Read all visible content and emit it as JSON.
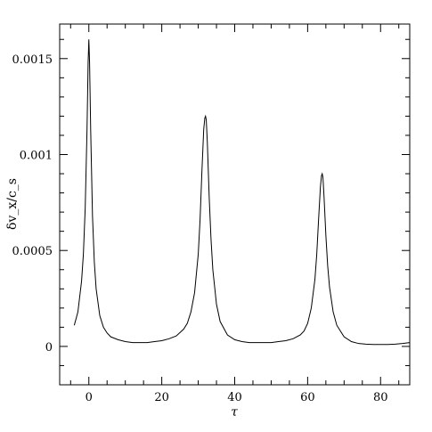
{
  "chart_data": {
    "type": "line",
    "title": "",
    "xlabel": "τ",
    "ylabel": "δv_x/c_s",
    "xlim": [
      -8,
      88
    ],
    "ylim": [
      -0.0002,
      0.00168
    ],
    "xticks": [
      0,
      20,
      40,
      60,
      80
    ],
    "xtick_labels": [
      "0",
      "20",
      "40",
      "60",
      "80"
    ],
    "yticks": [
      0,
      0.0005,
      0.001,
      0.0015
    ],
    "ytick_labels": [
      "0",
      "0.0005",
      "0.001",
      "0.0015"
    ],
    "grid": false,
    "line_color": "#000000",
    "series": [
      {
        "values_note": "",
        "x": [
          -4,
          -3,
          -2,
          -1.5,
          -1,
          -0.5,
          -0.2,
          0,
          0.2,
          0.5,
          1,
          1.5,
          2,
          3,
          4,
          5,
          6,
          8,
          10,
          12,
          14,
          16,
          18,
          20,
          22,
          24,
          26,
          27,
          28,
          29,
          30,
          30.5,
          31,
          31.5,
          31.8,
          32,
          32.2,
          32.5,
          33,
          33.5,
          34,
          35,
          36,
          38,
          40,
          42,
          44,
          46,
          48,
          50,
          52,
          54,
          56,
          58,
          59,
          60,
          61,
          62,
          62.5,
          63,
          63.5,
          63.8,
          64,
          64.2,
          64.5,
          65,
          65.5,
          66,
          67,
          68,
          70,
          72,
          74,
          76,
          78,
          80,
          82,
          84,
          86,
          88
        ],
        "y": [
          0.00011,
          0.00018,
          0.00034,
          0.00048,
          0.00072,
          0.00113,
          0.00148,
          0.0016,
          0.00148,
          0.00113,
          0.00068,
          0.00044,
          0.0003,
          0.00016,
          0.0001,
          7e-05,
          5e-05,
          3.5e-05,
          2.5e-05,
          2e-05,
          2e-05,
          2e-05,
          2.5e-05,
          3e-05,
          4e-05,
          5.5e-05,
          9e-05,
          0.00012,
          0.00018,
          0.00028,
          0.00048,
          0.00066,
          0.00091,
          0.00113,
          0.00119,
          0.0012,
          0.00118,
          0.00106,
          0.00078,
          0.00056,
          0.0004,
          0.00022,
          0.00013,
          6e-05,
          3.5e-05,
          2.5e-05,
          2e-05,
          2e-05,
          2e-05,
          2e-05,
          2.5e-05,
          3e-05,
          4e-05,
          6e-05,
          8e-05,
          0.00012,
          0.0002,
          0.00035,
          0.00048,
          0.00066,
          0.00083,
          0.00089,
          0.0009,
          0.00088,
          0.00078,
          0.00058,
          0.00042,
          0.00031,
          0.00018,
          0.00011,
          5e-05,
          2.5e-05,
          1.5e-05,
          1.2e-05,
          1e-05,
          1e-05,
          1e-05,
          1.2e-05,
          1.5e-05,
          2e-05
        ]
      }
    ]
  }
}
